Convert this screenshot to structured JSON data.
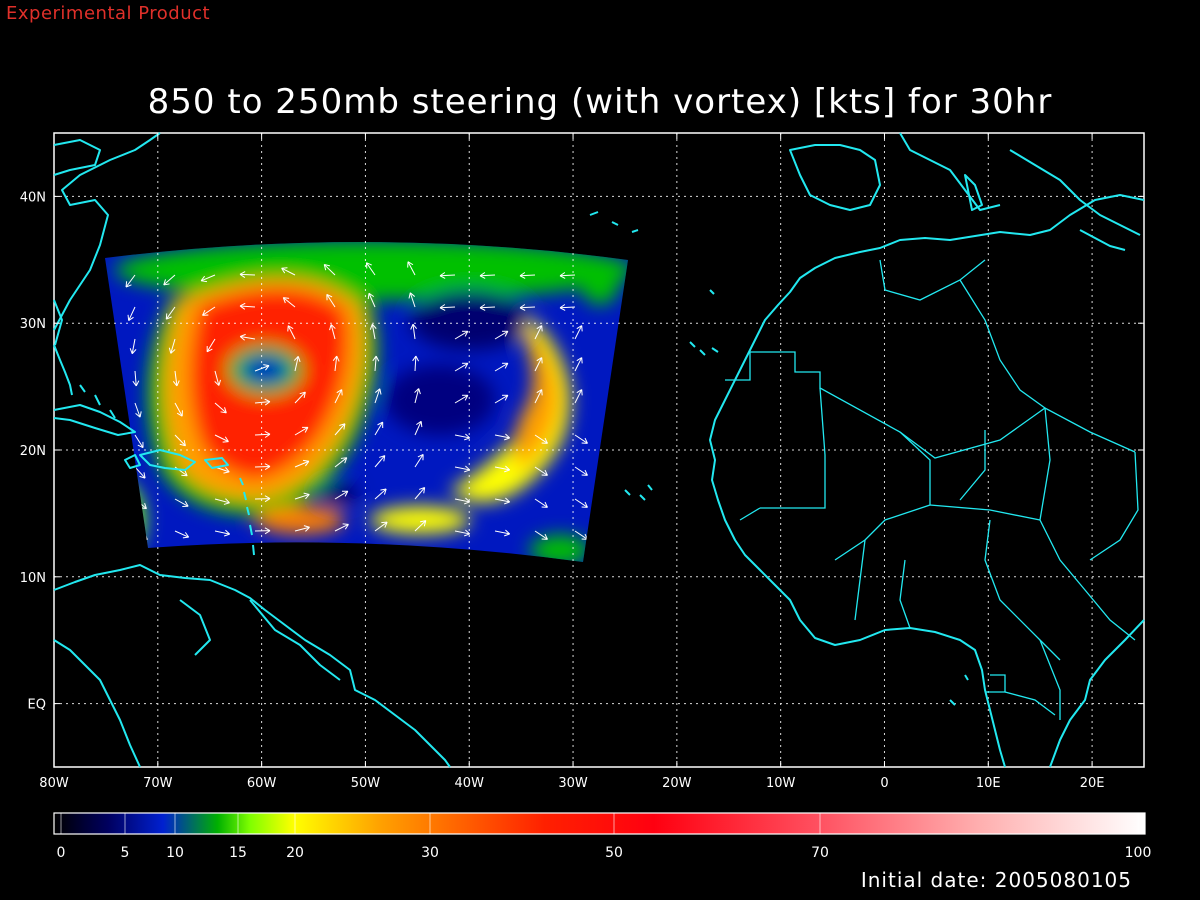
{
  "header": {
    "product_label": "Experimental Product",
    "title": "850 to 250mb steering (with vortex) [kts] for 30hr"
  },
  "footer": {
    "initial_date": "Initial date: 2005080105"
  },
  "map": {
    "lon_range": [
      -80,
      25
    ],
    "lat_range": [
      -5,
      45
    ],
    "grid": true,
    "coastline_color": "#22e8f0",
    "lon_ticks": [
      "80W",
      "70W",
      "60W",
      "50W",
      "40W",
      "30W",
      "20W",
      "10W",
      "0",
      "10E",
      "20E"
    ],
    "lat_ticks": [
      "EQ",
      "10N",
      "20N",
      "30N",
      "40N"
    ]
  },
  "colorbar": {
    "range": [
      0,
      100
    ],
    "tick_labels": [
      "0",
      "5",
      "10",
      "15",
      "20",
      "30",
      "50",
      "70",
      "100"
    ],
    "colors": [
      "#000000",
      "#000050",
      "#0000a8",
      "#0050ff",
      "#00c8ff",
      "#00d000",
      "#80ff00",
      "#ffff00",
      "#ffc000",
      "#ff8000",
      "#ff2000",
      "#ff0000",
      "#ff4040",
      "#ff9090",
      "#ffd0d0",
      "#ffffff"
    ]
  },
  "field": {
    "name": "steering flow speed",
    "units": "kts",
    "vortex_center": {
      "lon": -61,
      "lat": 27
    }
  }
}
